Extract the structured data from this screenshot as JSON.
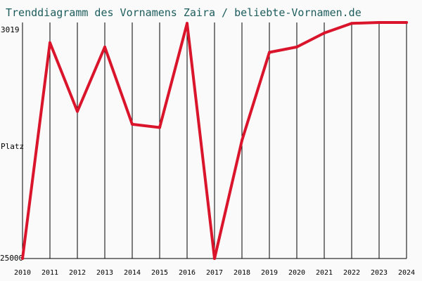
{
  "chart_data": {
    "type": "line",
    "title": "Trenddiagramm des Vornamens Zaira / beliebte-Vornamen.de",
    "ylabel": "Platz",
    "ytick_top": "3019",
    "ytick_bottom": "25000",
    "ylim": [
      3019,
      25000
    ],
    "y_inverted": true,
    "grid": "vertical",
    "x": [
      "2010",
      "2011",
      "2012",
      "2013",
      "2014",
      "2015",
      "2016",
      "2017",
      "2018",
      "2019",
      "2020",
      "2021",
      "2022",
      "2023",
      "2024"
    ],
    "series": [
      {
        "color": "#d9142b",
        "values": [
          25000,
          4900,
          11300,
          5300,
          12500,
          12800,
          3100,
          25000,
          14000,
          5800,
          5300,
          4000,
          3100,
          3020,
          3019
        ]
      }
    ]
  }
}
